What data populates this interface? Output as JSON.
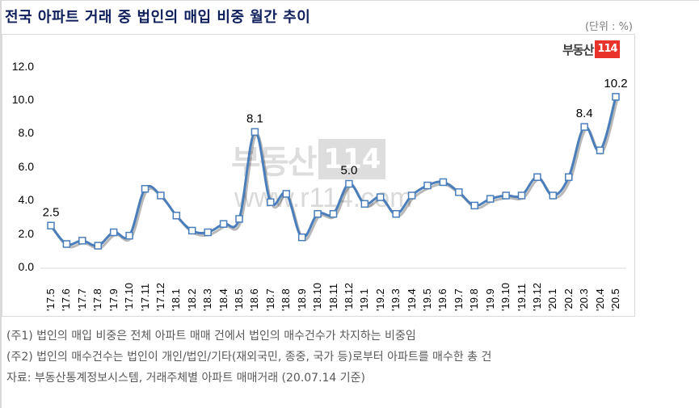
{
  "title": "전국 아파트 거래 중 법인의 매입 비중 월간 추이",
  "unit_label": "(단위 : %)",
  "logo": {
    "text": "부동산",
    "badge": "114",
    "badge_color": "#e8322a"
  },
  "watermark": {
    "text": "부동산",
    "badge": "114",
    "url": "www.r114.com"
  },
  "colors": {
    "line": "#4a7ebb",
    "marker_fill": "#ffffff",
    "title": "#0f1f5c",
    "notes": "#595959"
  },
  "chart_data": {
    "type": "line",
    "title": "전국 아파트 거래 중 법인의 매입 비중 월간 추이",
    "xlabel": "",
    "ylabel": "",
    "unit": "%",
    "ylim": [
      0,
      12
    ],
    "yticks": [
      "0.0",
      "2.0",
      "4.0",
      "6.0",
      "8.0",
      "10.0",
      "12.0"
    ],
    "grid": false,
    "legend": "none",
    "categories": [
      "'17.5",
      "'17.6",
      "'17.7",
      "'17.8",
      "'17.9",
      "'17.10",
      "'17.11",
      "'17.12",
      "'18.1",
      "'18.2",
      "'18.3",
      "'18.4",
      "'18.5",
      "'18.6",
      "'18.7",
      "'18.8",
      "'18.9",
      "'18.10",
      "'18.11",
      "'18.12",
      "'19.1",
      "'19.2",
      "'19.3",
      "'19.4",
      "'19.5",
      "'19.6",
      "'19.7",
      "'19.8",
      "'19.9",
      "'19.10",
      "'19.11",
      "'19.12",
      "'20.1",
      "'20.2",
      "'20.3",
      "'20.4",
      "'20.5"
    ],
    "series": [
      {
        "name": "법인 매입 비중",
        "values": [
          2.5,
          1.4,
          1.6,
          1.3,
          2.1,
          1.9,
          4.7,
          4.3,
          3.1,
          2.2,
          2.1,
          2.6,
          2.9,
          8.1,
          3.9,
          4.4,
          1.8,
          3.2,
          3.2,
          5.0,
          3.8,
          4.2,
          3.2,
          4.3,
          4.9,
          5.1,
          4.5,
          3.7,
          4.1,
          4.3,
          4.3,
          5.4,
          4.3,
          5.4,
          8.4,
          7.0,
          10.2
        ]
      }
    ],
    "annotations": [
      {
        "category": "'17.5",
        "label": "2.5"
      },
      {
        "category": "'18.6",
        "label": "8.1"
      },
      {
        "category": "'18.12",
        "label": "5.0"
      },
      {
        "category": "'20.3",
        "label": "8.4"
      },
      {
        "category": "'20.5",
        "label": "10.2"
      }
    ]
  },
  "notes": [
    "(주1) 법인의 매입 비중은 전체 아파트 매매 건에서 법인의 매수건수가 차지하는 비중임",
    "(주2) 법인의 매수건수는 법인이 개인/법인/기타(재외국민, 종중, 국가 등)로부터 아파트를 매수한 총 건",
    "자료: 부동산통계정보시스템, 거래주체별 아파트 매매거래 (20.07.14 기준)"
  ]
}
